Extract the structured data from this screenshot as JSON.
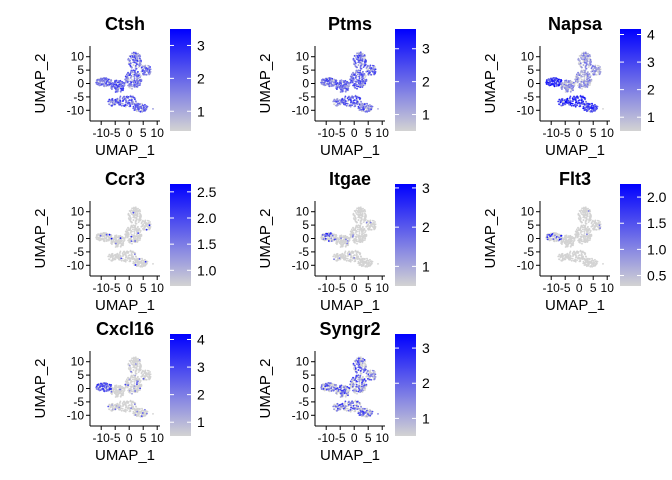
{
  "chart_data": {
    "type": "scatter",
    "grid": false,
    "legend_placement": "right",
    "colors": {
      "low": "#d3d3d3",
      "high": "#0000ff",
      "background_point": "#d3d3d3"
    },
    "xlabel": "UMAP_1",
    "ylabel": "UMAP_2",
    "xlim": [
      -14,
      11
    ],
    "ylim": [
      -14,
      14
    ],
    "x_ticks": [
      "-10",
      "-5",
      "0",
      "5",
      "10"
    ],
    "y_ticks": [
      "10",
      "5",
      "0",
      "-5",
      "-10"
    ],
    "panels": [
      {
        "title": "Ctsh",
        "scale_min": 0.4,
        "scale_max": 3.5,
        "legend_ticks": [
          "1",
          "2",
          "3"
        ],
        "expression": "broad"
      },
      {
        "title": "Ptms",
        "scale_min": 0.5,
        "scale_max": 3.6,
        "legend_ticks": [
          "1",
          "2",
          "3"
        ],
        "expression": "broad"
      },
      {
        "title": "Napsa",
        "scale_min": 0.5,
        "scale_max": 4.2,
        "legend_ticks": [
          "1",
          "2",
          "3",
          "4"
        ],
        "expression": "broad_high_lower"
      },
      {
        "title": "Ccr3",
        "scale_min": 0.7,
        "scale_max": 2.65,
        "legend_ticks": [
          "1.0",
          "1.5",
          "2.0",
          "2.5"
        ],
        "expression": "sparse"
      },
      {
        "title": "Itgae",
        "scale_min": 0.5,
        "scale_max": 3.1,
        "legend_ticks": [
          "1",
          "2",
          "3"
        ],
        "expression": "sparse_left"
      },
      {
        "title": "Flt3",
        "scale_min": 0.3,
        "scale_max": 2.25,
        "legend_ticks": [
          "0.5",
          "1.0",
          "1.5",
          "2.0"
        ],
        "expression": "sparse_left"
      },
      {
        "title": "Cxcl16",
        "scale_min": 0.5,
        "scale_max": 4.2,
        "legend_ticks": [
          "1",
          "2",
          "3",
          "4"
        ],
        "expression": "left_arm"
      },
      {
        "title": "Syngr2",
        "scale_min": 0.5,
        "scale_max": 3.4,
        "legend_ticks": [
          "1",
          "2",
          "3"
        ],
        "expression": "moderate"
      }
    ]
  }
}
